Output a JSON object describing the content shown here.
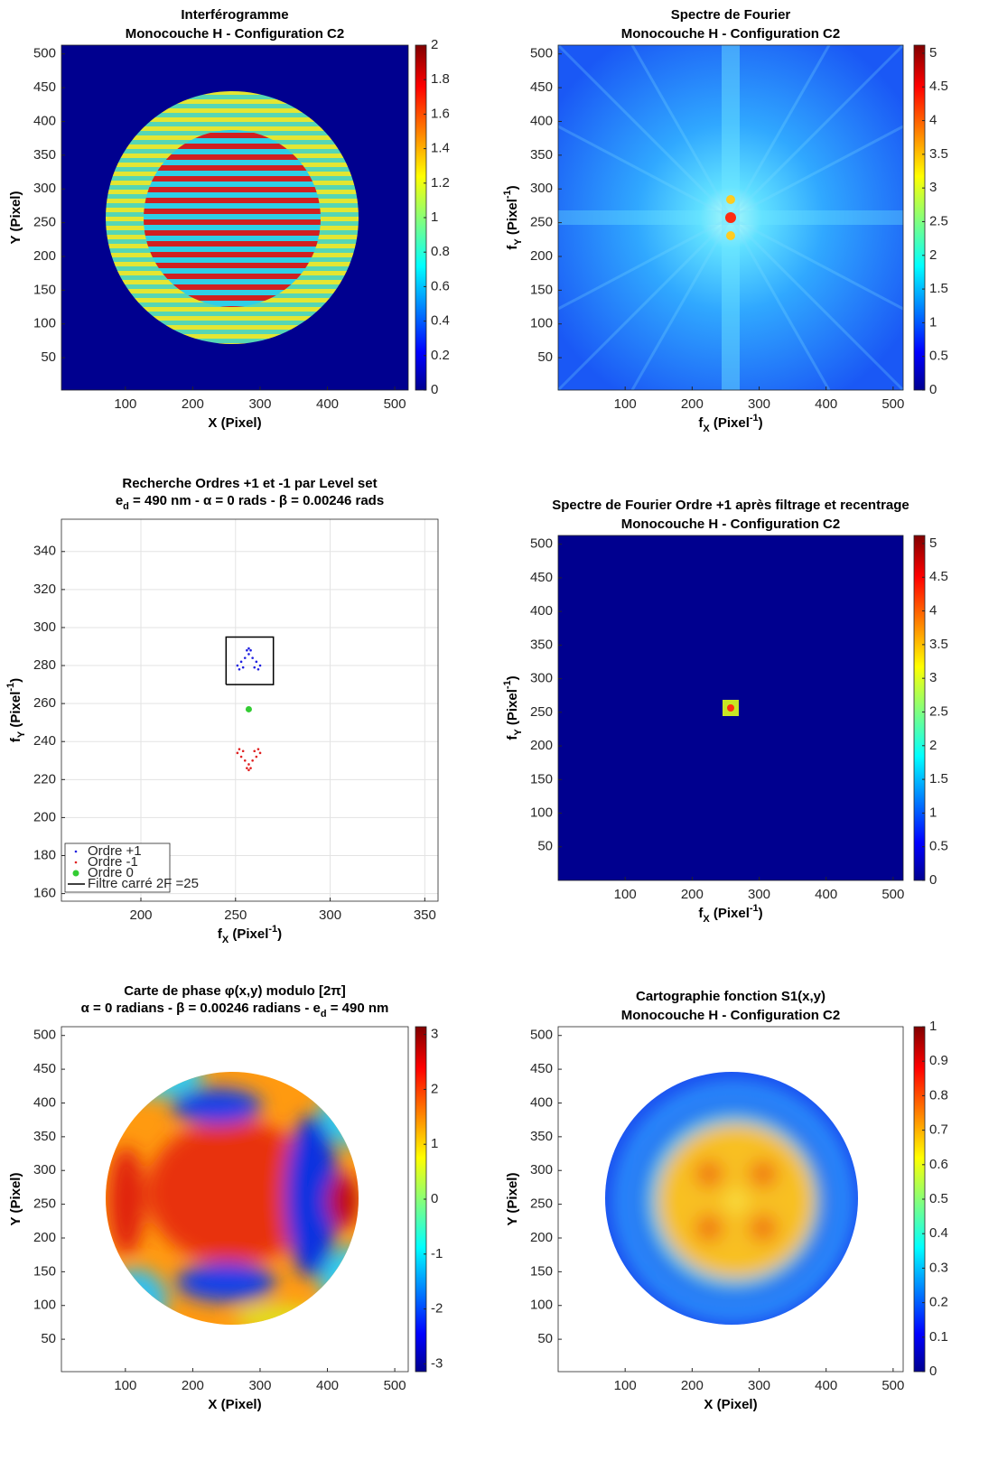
{
  "chart_data": [
    {
      "type": "heatmap",
      "title": [
        "Interférogramme",
        "Monocouche H - Configuration C2"
      ],
      "xlabel": "X (Pixel)",
      "ylabel": "Y (Pixel)",
      "xlim": [
        5,
        520
      ],
      "ylim": [
        2,
        513
      ],
      "xticks": [
        100,
        200,
        300,
        400,
        500
      ],
      "yticks": [
        50,
        100,
        150,
        200,
        250,
        300,
        350,
        400,
        450,
        500
      ],
      "colorbar": {
        "clim": [
          0,
          2
        ],
        "ticks": [
          0,
          0.2,
          0.4,
          0.6,
          0.8,
          1,
          1.2,
          1.4,
          1.6,
          1.8,
          2
        ]
      }
    },
    {
      "type": "heatmap",
      "title": [
        "Spectre de Fourier",
        "Monocouche H - Configuration C2"
      ],
      "xlabel": [
        "f",
        "X",
        " (Pixel",
        "-1",
        ")"
      ],
      "ylabel": [
        "f",
        "Y",
        " (Pixel",
        "-1",
        ")"
      ],
      "xlim": [
        0,
        515
      ],
      "ylim": [
        2,
        513
      ],
      "xticks": [
        100,
        200,
        300,
        400,
        500
      ],
      "yticks": [
        50,
        100,
        150,
        200,
        250,
        300,
        350,
        400,
        450,
        500
      ],
      "colorbar": {
        "clim": [
          0,
          5.12
        ],
        "ticks": [
          0,
          0.5,
          1,
          1.5,
          2,
          2.5,
          3,
          3.5,
          4,
          4.5,
          5
        ]
      }
    },
    {
      "type": "scatter",
      "title": [
        "Recherche Ordres +1 et -1 par Level set",
        [
          "e",
          "d",
          " = 490 nm - α = 0 rads - β = 0.00246 rads"
        ]
      ],
      "xlabel": [
        "f",
        "X",
        " (Pixel",
        "-1",
        ")"
      ],
      "ylabel": [
        "f",
        "Y",
        " (Pixel",
        "-1",
        ")"
      ],
      "xlim": [
        158,
        357
      ],
      "ylim": [
        156,
        357
      ],
      "xticks": [
        200,
        250,
        300,
        350
      ],
      "yticks": [
        160,
        180,
        200,
        220,
        240,
        260,
        280,
        300,
        320,
        340
      ],
      "grid": true,
      "legend": "lower left",
      "series": [
        {
          "name": "Ordre +1",
          "color": "#2020e0",
          "marker_size": 1.3,
          "x": [
            257,
            256,
            258,
            257,
            255,
            259,
            253,
            261,
            251,
            263,
            252,
            262,
            254,
            260
          ],
          "y": [
            289,
            288,
            288,
            286,
            284,
            284,
            282,
            282,
            280,
            280,
            278,
            278,
            279,
            279
          ]
        },
        {
          "name": "Ordre -1",
          "color": "#e02020",
          "marker_size": 1.3,
          "x": [
            257,
            256,
            258,
            257,
            255,
            259,
            253,
            261,
            251,
            263,
            252,
            262,
            254,
            260
          ],
          "y": [
            225,
            226,
            226,
            228,
            230,
            230,
            232,
            232,
            234,
            234,
            236,
            236,
            235,
            235
          ]
        },
        {
          "name": "Ordre 0",
          "color": "#33cc33",
          "marker_size": 3.5,
          "x": [
            257
          ],
          "y": [
            257
          ]
        },
        {
          "name": "Filtre carré 2F =25",
          "color": "#000000",
          "mode": "line",
          "x": [
            245,
            270,
            270,
            245,
            245
          ],
          "y": [
            270,
            270,
            295,
            295,
            270
          ]
        }
      ]
    },
    {
      "type": "heatmap",
      "title": [
        "Spectre de Fourier Ordre +1 après filtrage et recentrage",
        "Monocouche H - Configuration C2"
      ],
      "xlabel": [
        "f",
        "X",
        " (Pixel",
        "-1",
        ")"
      ],
      "ylabel": [
        "f",
        "Y",
        " (Pixel",
        "-1",
        ")"
      ],
      "xlim": [
        0,
        515
      ],
      "ylim": [
        0,
        513
      ],
      "xticks": [
        100,
        200,
        300,
        400,
        500
      ],
      "yticks": [
        50,
        100,
        150,
        200,
        250,
        300,
        350,
        400,
        450,
        500
      ],
      "colorbar": {
        "clim": [
          0,
          5.12
        ],
        "ticks": [
          0,
          0.5,
          1,
          1.5,
          2,
          2.5,
          3,
          3.5,
          4,
          4.5,
          5
        ]
      }
    },
    {
      "type": "heatmap",
      "title": [
        "Carte de phase φ(x,y) modulo [2π]",
        [
          "α = 0 radians - β = 0.00246 radians - e",
          "d",
          " = 490 nm"
        ]
      ],
      "xlabel": "X (Pixel)",
      "ylabel": "Y (Pixel)",
      "xlim": [
        5,
        520
      ],
      "ylim": [
        2,
        513
      ],
      "xticks": [
        100,
        200,
        300,
        400,
        500
      ],
      "yticks": [
        50,
        100,
        150,
        200,
        250,
        300,
        350,
        400,
        450,
        500
      ],
      "colorbar": {
        "clim": [
          -3.1416,
          3.1416
        ],
        "ticks": [
          -3,
          -2,
          -1,
          0,
          1,
          2,
          3
        ]
      }
    },
    {
      "type": "heatmap",
      "title": [
        "Cartographie fonction S1(x,y)",
        "Monocouche H - Configuration C2"
      ],
      "xlabel": "X (Pixel)",
      "ylabel": "Y (Pixel)",
      "xlim": [
        0,
        515
      ],
      "ylim": [
        2,
        513
      ],
      "xticks": [
        100,
        200,
        300,
        400,
        500
      ],
      "yticks": [
        50,
        100,
        150,
        200,
        250,
        300,
        350,
        400,
        450,
        500
      ],
      "colorbar": {
        "clim": [
          0,
          1
        ],
        "ticks": [
          0,
          0.1,
          0.2,
          0.3,
          0.4,
          0.5,
          0.6,
          0.7,
          0.8,
          0.9,
          1
        ]
      }
    }
  ]
}
